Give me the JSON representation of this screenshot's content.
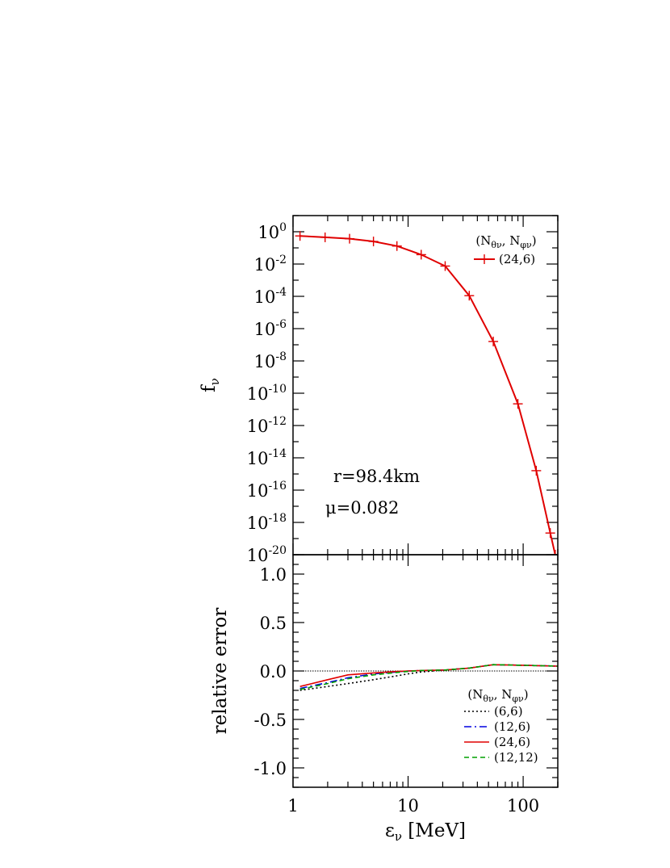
{
  "chart_data": [
    {
      "panel": "top",
      "type": "line",
      "ylabel": "f",
      "ylabel_sub": "ν",
      "yscale": "log",
      "xscale": "log",
      "xlim": [
        1,
        200
      ],
      "ylim": [
        1e-20,
        10.0
      ],
      "ytick_labels": [
        {
          "base": "10",
          "exp": "0",
          "value": 1
        },
        {
          "base": "10",
          "exp": "-2",
          "value": 0.01
        },
        {
          "base": "10",
          "exp": "-4",
          "value": 0.0001
        },
        {
          "base": "10",
          "exp": "-6",
          "value": 1e-06
        },
        {
          "base": "10",
          "exp": "-8",
          "value": 1e-08
        },
        {
          "base": "10",
          "exp": "-10",
          "value": 1e-10
        },
        {
          "base": "10",
          "exp": "-12",
          "value": 1e-12
        },
        {
          "base": "10",
          "exp": "-14",
          "value": 1e-14
        },
        {
          "base": "10",
          "exp": "-16",
          "value": 1e-16
        },
        {
          "base": "10",
          "exp": "-18",
          "value": 1e-18
        },
        {
          "base": "10",
          "exp": "-20",
          "value": 1e-20
        }
      ],
      "annotations": [
        "r=98.4km",
        "μ=0.082"
      ],
      "legend": {
        "placement": "top-right",
        "header_parts": [
          "(N",
          "θν",
          ", N",
          "φν",
          ")"
        ],
        "entries": [
          "(24,6)"
        ]
      },
      "series": [
        {
          "name": "(24,6)",
          "color": "#e00000",
          "marker": "plus",
          "x": [
            1.15,
            1.9,
            3.1,
            5.0,
            8.0,
            13.0,
            21.0,
            34.0,
            55.0,
            90.0,
            130.0,
            172.0,
            190.0
          ],
          "y": [
            0.55,
            0.45,
            0.37,
            0.25,
            0.13,
            0.038,
            0.0075,
            0.00011,
            1.6e-07,
            2.2e-11,
            1.6e-15,
            2.2e-19,
            1e-20
          ]
        }
      ]
    },
    {
      "panel": "bottom",
      "type": "line",
      "xlabel": "ε",
      "xlabel_sub": "ν",
      "xlabel_unit": " [MeV]",
      "ylabel": "relative error",
      "xscale": "log",
      "xlim": [
        1,
        200
      ],
      "ylim": [
        -1.2,
        1.2
      ],
      "xtick_labels": [
        {
          "label": "1",
          "value": 1
        },
        {
          "label": "10",
          "value": 10
        },
        {
          "label": "100",
          "value": 100
        }
      ],
      "ytick_labels": [
        {
          "label": "1.0",
          "value": 1.0
        },
        {
          "label": "0.5",
          "value": 0.5
        },
        {
          "label": "0.0",
          "value": 0.0
        },
        {
          "label": "-0.5",
          "value": -0.5
        },
        {
          "label": "-1.0",
          "value": -1.0
        }
      ],
      "reference_line": 0.0,
      "legend": {
        "placement": "bottom-right",
        "header_parts": [
          "(N",
          "θν",
          ", N",
          "φν",
          ")"
        ],
        "entries": [
          "(6,6)",
          "(12,6)",
          "(24,6)",
          "(12,12)"
        ]
      },
      "series": [
        {
          "name": "(6,6)",
          "color": "#000000",
          "dash": "2,3",
          "x": [
            1.15,
            2.0,
            3.0,
            5.0,
            8.0,
            10.0,
            13.0,
            21.0,
            34.0,
            55.0,
            90.0,
            200.0
          ],
          "y": [
            -0.2,
            -0.16,
            -0.13,
            -0.09,
            -0.05,
            -0.03,
            -0.01,
            0.01,
            0.03,
            0.065,
            0.06,
            0.05
          ]
        },
        {
          "name": "(12,6)",
          "color": "#0000e0",
          "dash": "9,4,2,4",
          "x": [
            1.15,
            2.0,
            3.0,
            5.0,
            8.0,
            10.0,
            13.0,
            21.0,
            34.0,
            55.0,
            90.0,
            200.0
          ],
          "y": [
            -0.18,
            -0.12,
            -0.07,
            -0.03,
            -0.01,
            0.0,
            0.005,
            0.01,
            0.03,
            0.065,
            0.06,
            0.05
          ]
        },
        {
          "name": "(24,6)",
          "color": "#e00000",
          "dash": "",
          "x": [
            1.15,
            2.0,
            3.0,
            5.0,
            8.0,
            10.0,
            13.0,
            21.0,
            34.0,
            55.0,
            90.0,
            200.0
          ],
          "y": [
            -0.16,
            -0.09,
            -0.04,
            -0.02,
            -0.005,
            0.0,
            0.005,
            0.01,
            0.03,
            0.065,
            0.06,
            0.05
          ]
        },
        {
          "name": "(12,12)",
          "color": "#00a000",
          "dash": "6,4",
          "x": [
            1.15,
            2.0,
            3.0,
            5.0,
            8.0,
            10.0,
            13.0,
            21.0,
            34.0,
            55.0,
            90.0,
            200.0
          ],
          "y": [
            -0.19,
            -0.13,
            -0.08,
            -0.04,
            -0.015,
            -0.005,
            0.005,
            0.01,
            0.03,
            0.065,
            0.06,
            0.05
          ]
        }
      ]
    }
  ]
}
